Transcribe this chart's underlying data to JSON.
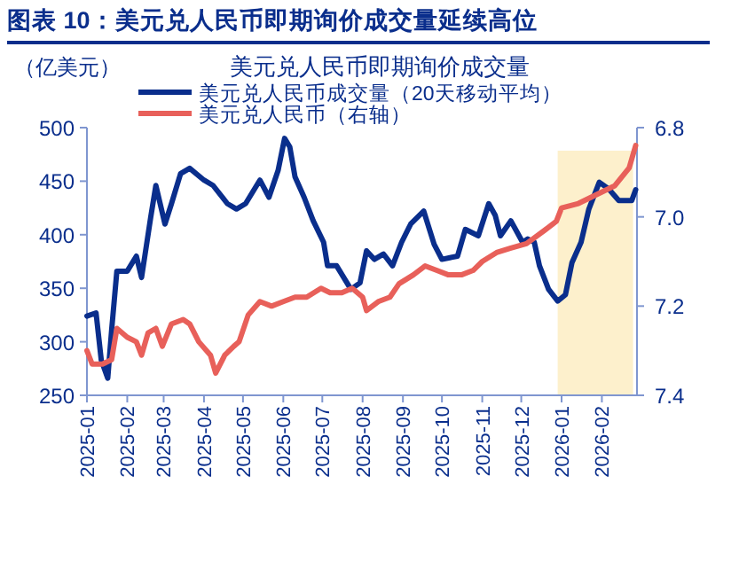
{
  "chart_data": {
    "type": "line",
    "title": "图表 10：美元兑人民币即期询价成交量延续高位",
    "subtitle": "美元兑人民币即期询价成交量",
    "ylabel": "（亿美元）",
    "xlim": [
      "2025-01-01",
      "2026-02-28"
    ],
    "xticks": [
      {
        "value": "2025-01-01",
        "label": "2025-01"
      },
      {
        "value": "2025-02-01",
        "label": "2025-02"
      },
      {
        "value": "2025-03-01",
        "label": "2025-03"
      },
      {
        "value": "2025-04-01",
        "label": "2025-04"
      },
      {
        "value": "2025-05-01",
        "label": "2025-05"
      },
      {
        "value": "2025-06-01",
        "label": "2025-06"
      },
      {
        "value": "2025-07-01",
        "label": "2025-07"
      },
      {
        "value": "2025-08-01",
        "label": "2025-08"
      },
      {
        "value": "2025-09-01",
        "label": "2025-09"
      },
      {
        "value": "2025-10-01",
        "label": "2025-10"
      },
      {
        "value": "2025-11-01",
        "label": "2025-11"
      },
      {
        "value": "2025-12-01",
        "label": "2025-12"
      },
      {
        "value": "2026-01-01",
        "label": "2026-01"
      },
      {
        "value": "2026-02-01",
        "label": "2026-02"
      }
    ],
    "ylim": [
      250,
      500
    ],
    "yticks": [
      250,
      300,
      350,
      400,
      450,
      500
    ],
    "y2lim": [
      7.4,
      6.8
    ],
    "y2ticks": [
      7.4,
      7.2,
      {
        "value": 7.0,
        "label": "7.0"
      },
      6.8
    ],
    "grid": false,
    "legend": "top",
    "bands": [
      {
        "axis": "x",
        "from": "2025-12-29",
        "to": "2026-02-25",
        "color": "#fdf0cc"
      }
    ],
    "series": [
      {
        "name": "美元兑人民币成交量（20天移动平均）",
        "color": "#0a2e8c",
        "x": [
          "2025-01-01",
          "2025-01-08",
          "2025-01-12",
          "2025-01-17",
          "2025-01-20",
          "2025-01-24",
          "2025-02-01",
          "2025-02-08",
          "2025-02-12",
          "2025-02-19",
          "2025-02-23",
          "2025-03-02",
          "2025-03-07",
          "2025-03-14",
          "2025-03-21",
          "2025-04-01",
          "2025-04-08",
          "2025-04-19",
          "2025-04-26",
          "2025-05-03",
          "2025-05-14",
          "2025-05-21",
          "2025-05-28",
          "2025-06-02",
          "2025-06-06",
          "2025-06-10",
          "2025-06-17",
          "2025-06-24",
          "2025-07-02",
          "2025-07-05",
          "2025-07-12",
          "2025-07-23",
          "2025-07-30",
          "2025-08-04",
          "2025-08-10",
          "2025-08-17",
          "2025-08-24",
          "2025-08-31",
          "2025-09-07",
          "2025-09-17",
          "2025-09-25",
          "2025-10-01",
          "2025-10-13",
          "2025-10-19",
          "2025-10-29",
          "2025-11-06",
          "2025-11-11",
          "2025-11-15",
          "2025-11-23",
          "2025-12-02",
          "2025-12-06",
          "2025-12-11",
          "2025-12-15",
          "2025-12-22",
          "2025-12-29",
          "2026-01-04",
          "2026-01-09",
          "2026-01-16",
          "2026-01-22",
          "2026-01-30",
          "2026-02-06",
          "2026-02-14",
          "2026-02-24",
          "2026-02-27"
        ],
        "values": [
          324,
          327,
          283,
          266,
          311,
          366,
          366,
          380,
          360,
          416,
          446,
          410,
          429,
          457,
          462,
          451,
          446,
          429,
          424,
          429,
          451,
          435,
          460,
          490,
          482,
          454,
          435,
          413,
          393,
          371,
          371,
          349,
          355,
          385,
          377,
          382,
          371,
          393,
          410,
          422,
          391,
          377,
          380,
          405,
          399,
          429,
          418,
          399,
          413,
          393,
          396,
          393,
          371,
          349,
          338,
          344,
          374,
          393,
          424,
          449,
          443,
          432,
          432,
          442
        ]
      },
      {
        "name": "美元兑人民币（右轴）",
        "color": "#e8605a",
        "axis": "y2",
        "x": [
          "2025-01-01",
          "2025-01-05",
          "2025-01-13",
          "2025-01-20",
          "2025-01-24",
          "2025-02-01",
          "2025-02-08",
          "2025-02-12",
          "2025-02-17",
          "2025-02-23",
          "2025-02-28",
          "2025-03-07",
          "2025-03-16",
          "2025-03-21",
          "2025-03-28",
          "2025-04-06",
          "2025-04-10",
          "2025-04-17",
          "2025-04-24",
          "2025-04-28",
          "2025-05-05",
          "2025-05-14",
          "2025-05-23",
          "2025-06-01",
          "2025-06-10",
          "2025-06-19",
          "2025-06-30",
          "2025-07-07",
          "2025-07-16",
          "2025-07-24",
          "2025-08-01",
          "2025-08-04",
          "2025-08-13",
          "2025-08-22",
          "2025-08-29",
          "2025-09-09",
          "2025-09-18",
          "2025-09-27",
          "2025-10-06",
          "2025-10-16",
          "2025-10-25",
          "2025-11-01",
          "2025-11-12",
          "2025-11-23",
          "2025-12-05",
          "2025-12-19",
          "2025-12-28",
          "2026-01-01",
          "2026-01-14",
          "2026-01-28",
          "2026-02-11",
          "2026-02-22",
          "2026-02-27"
        ],
        "values": [
          7.3,
          7.33,
          7.33,
          7.32,
          7.25,
          7.27,
          7.28,
          7.31,
          7.26,
          7.25,
          7.29,
          7.24,
          7.23,
          7.24,
          7.28,
          7.31,
          7.35,
          7.31,
          7.29,
          7.28,
          7.22,
          7.19,
          7.2,
          7.19,
          7.18,
          7.18,
          7.16,
          7.17,
          7.17,
          7.16,
          7.18,
          7.21,
          7.19,
          7.18,
          7.15,
          7.13,
          7.11,
          7.12,
          7.13,
          7.13,
          7.12,
          7.1,
          7.08,
          7.07,
          7.06,
          7.03,
          7.01,
          6.98,
          6.97,
          6.95,
          6.93,
          6.89,
          6.84
        ]
      }
    ]
  }
}
